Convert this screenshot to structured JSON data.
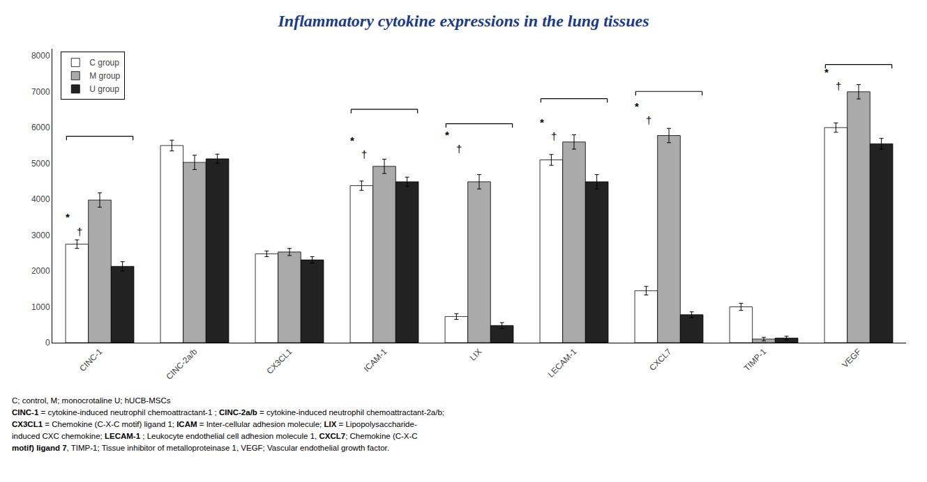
{
  "chart_data": {
    "type": "bar",
    "title": "Inflammatory cytokine expressions in the lung tissues",
    "title_color": "#1a3a8a",
    "categories": [
      "CINC-1",
      "CINC-2a/b",
      "CX3CL1",
      "ICAM-1",
      "LIX",
      "LECAM-1",
      "CXCL7",
      "TIMP-1",
      "VEGF"
    ],
    "series": [
      {
        "name": "C group",
        "color": "white",
        "edgecolor": "black",
        "values": [
          2750,
          5500,
          2480,
          4380,
          730,
          5100,
          1450,
          1000,
          6000
        ],
        "errors": [
          120,
          150,
          80,
          130,
          80,
          150,
          120,
          100,
          130
        ]
      },
      {
        "name": "M group",
        "color": "#aaaaaa",
        "edgecolor": "black",
        "values": [
          3980,
          5030,
          2530,
          4920,
          4490,
          5600,
          5780,
          100,
          7000
        ],
        "errors": [
          200,
          200,
          100,
          200,
          200,
          200,
          200,
          50,
          200
        ]
      },
      {
        "name": "U group",
        "color": "#222222",
        "edgecolor": "black",
        "values": [
          2130,
          5130,
          2310,
          4490,
          480,
          4490,
          780,
          130,
          5550
        ],
        "errors": [
          130,
          130,
          90,
          130,
          80,
          200,
          80,
          50,
          150
        ]
      }
    ],
    "ylim": [
      0,
      8200
    ],
    "yticks": [
      0,
      1000,
      2000,
      3000,
      4000,
      5000,
      6000,
      7000,
      8000
    ],
    "grid": false,
    "legend": "upper left",
    "brackets": [
      {
        "category": "CINC-1",
        "y": 5650,
        "height": 110
      },
      {
        "category": "ICAM-1",
        "y": 6400,
        "height": 110
      },
      {
        "category": "LIX",
        "y": 6000,
        "height": 110
      },
      {
        "category": "LECAM-1",
        "y": 6700,
        "height": 110
      },
      {
        "category": "CXCL7",
        "y": 6900,
        "height": 110
      },
      {
        "category": "VEGF",
        "y": 7650,
        "height": 110
      }
    ],
    "annotations": [
      {
        "category": "CINC-1",
        "text": "*",
        "y": 3300
      },
      {
        "category": "CINC-1",
        "text": "†",
        "y": 2900
      },
      {
        "category": "ICAM-1",
        "text": "*",
        "y": 5450
      },
      {
        "category": "ICAM-1",
        "text": "†",
        "y": 5050
      },
      {
        "category": "LIX",
        "text": "*",
        "y": 5600
      },
      {
        "category": "LIX",
        "text": "†",
        "y": 5200
      },
      {
        "category": "LECAM-1",
        "text": "*",
        "y": 5950
      },
      {
        "category": "LECAM-1",
        "text": "†",
        "y": 5550
      },
      {
        "category": "CXCL7",
        "text": "*",
        "y": 6400
      },
      {
        "category": "CXCL7",
        "text": "†",
        "y": 6000
      },
      {
        "category": "VEGF",
        "text": "*",
        "y": 7350
      },
      {
        "category": "VEGF",
        "text": "†",
        "y": 6950
      }
    ],
    "caption": [
      [
        {
          "text": "C; control, M; monocrotaline U; hUCB-MSCs",
          "bold": false
        }
      ],
      [
        {
          "text": "CINC-1",
          "bold": true
        },
        {
          "text": " = cytokine-induced neutrophil chemoattractant-1 ; ",
          "bold": false
        },
        {
          "text": "CINC-2a/b",
          "bold": true
        },
        {
          "text": " = cytokine-induced neutrophil chemoattractant-2a/b;",
          "bold": false
        }
      ],
      [
        {
          "text": "CX3CL1",
          "bold": true
        },
        {
          "text": " = Chemokine (C-X-C motif) ligand 1; ",
          "bold": false
        },
        {
          "text": "ICAM",
          "bold": true
        },
        {
          "text": " = Inter-cellular adhesion molecule; ",
          "bold": false
        },
        {
          "text": "LIX",
          "bold": true
        },
        {
          "text": " = Lipopolysaccharide-",
          "bold": false
        }
      ],
      [
        {
          "text": "induced CXC chemokine; ",
          "bold": false
        },
        {
          "text": "LECAM-1",
          "bold": true
        },
        {
          "text": " ; Leukocyte endothelial cell adhesion molecule 1, ",
          "bold": false
        },
        {
          "text": "CXCL7",
          "bold": true
        },
        {
          "text": "; Chemokine (C-X-C",
          "bold": false
        }
      ],
      [
        {
          "text": "motif) ligand 7",
          "bold": true
        },
        {
          "text": ", TIMP-1; Tissue inhibitor of metalloproteinase 1, VEGF; Vascular endothelial growth factor.",
          "bold": false
        }
      ]
    ]
  }
}
